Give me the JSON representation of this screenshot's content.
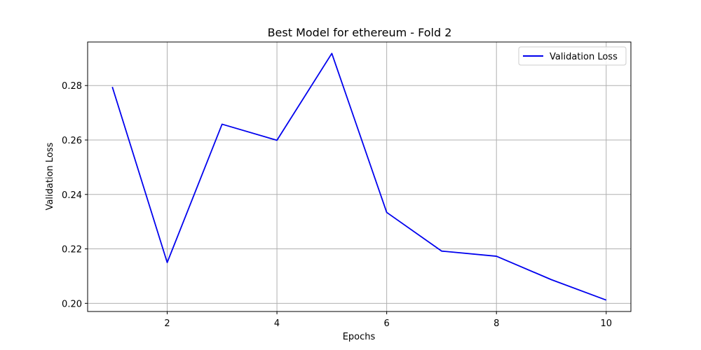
{
  "chart_data": {
    "type": "line",
    "title": "Best Model for ethereum - Fold 2",
    "xlabel": "Epochs",
    "ylabel": "Validation Loss",
    "x": [
      1,
      2,
      3,
      4,
      5,
      6,
      7,
      8,
      9,
      10
    ],
    "series": [
      {
        "name": "Validation Loss",
        "color": "#0000ee",
        "values": [
          0.2795,
          0.215,
          0.2658,
          0.2599,
          0.2918,
          0.2334,
          0.2192,
          0.2173,
          0.2087,
          0.2012
        ]
      }
    ],
    "xlim": [
      0.55,
      10.45
    ],
    "ylim": [
      0.197,
      0.296
    ],
    "xticks": [
      2,
      4,
      6,
      8,
      10
    ],
    "xtick_labels": [
      "2",
      "4",
      "6",
      "8",
      "10"
    ],
    "yticks": [
      0.2,
      0.22,
      0.24,
      0.26,
      0.28
    ],
    "ytick_labels": [
      "0.20",
      "0.22",
      "0.24",
      "0.26",
      "0.28"
    ],
    "grid": true,
    "legend_position": "top-right"
  }
}
